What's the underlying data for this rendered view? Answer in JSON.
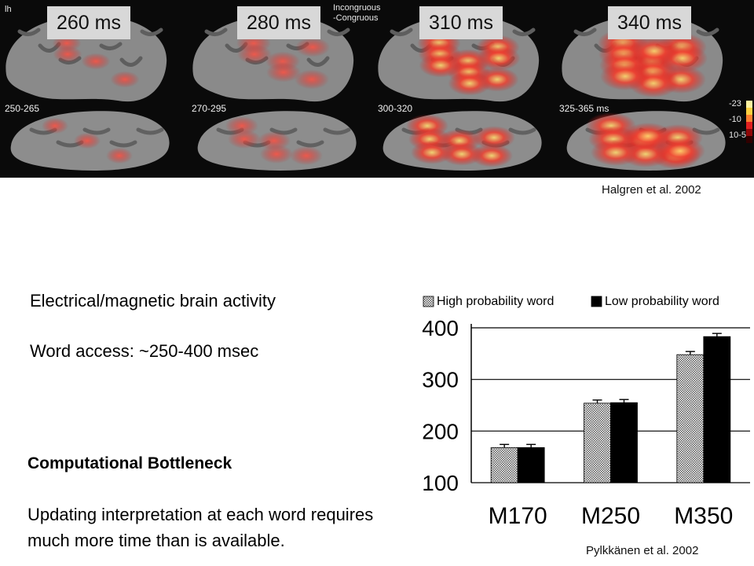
{
  "brain_figure": {
    "hemisphere_label": "lh",
    "contrast_label": [
      "Incongruous",
      "-Congruous"
    ],
    "panels": [
      {
        "time": "260 ms",
        "range": "250-265"
      },
      {
        "time": "280 ms",
        "range": "270-295"
      },
      {
        "time": "310 ms",
        "range": "300-320"
      },
      {
        "time": "340 ms",
        "range": "325-365 ms"
      }
    ],
    "color_scale": [
      "-23",
      "-10",
      "10-5"
    ],
    "citation": "Halgren et al. 2002"
  },
  "text": {
    "line1": "Electrical/magnetic brain activity",
    "line2": "Word access: ~250-400 msec",
    "bottleneck_title": "Computational Bottleneck",
    "bottleneck_body_1": "Updating interpretation at each word requires",
    "bottleneck_body_2": "much more time than is available."
  },
  "chart_citation": "Pylkkänen et al. 2002",
  "chart_data": {
    "type": "bar",
    "categories": [
      "M170",
      "M250",
      "M350"
    ],
    "series": [
      {
        "name": "High probability word",
        "values": [
          168,
          254,
          348
        ],
        "color": "#bdbdbd",
        "pattern": "dotted"
      },
      {
        "name": "Low probability word",
        "values": [
          168,
          255,
          383
        ],
        "color": "#000000"
      }
    ],
    "ylim": [
      100,
      400
    ],
    "yticks": [
      "100",
      "200",
      "300",
      "400"
    ],
    "grid": true,
    "legend": "top"
  }
}
